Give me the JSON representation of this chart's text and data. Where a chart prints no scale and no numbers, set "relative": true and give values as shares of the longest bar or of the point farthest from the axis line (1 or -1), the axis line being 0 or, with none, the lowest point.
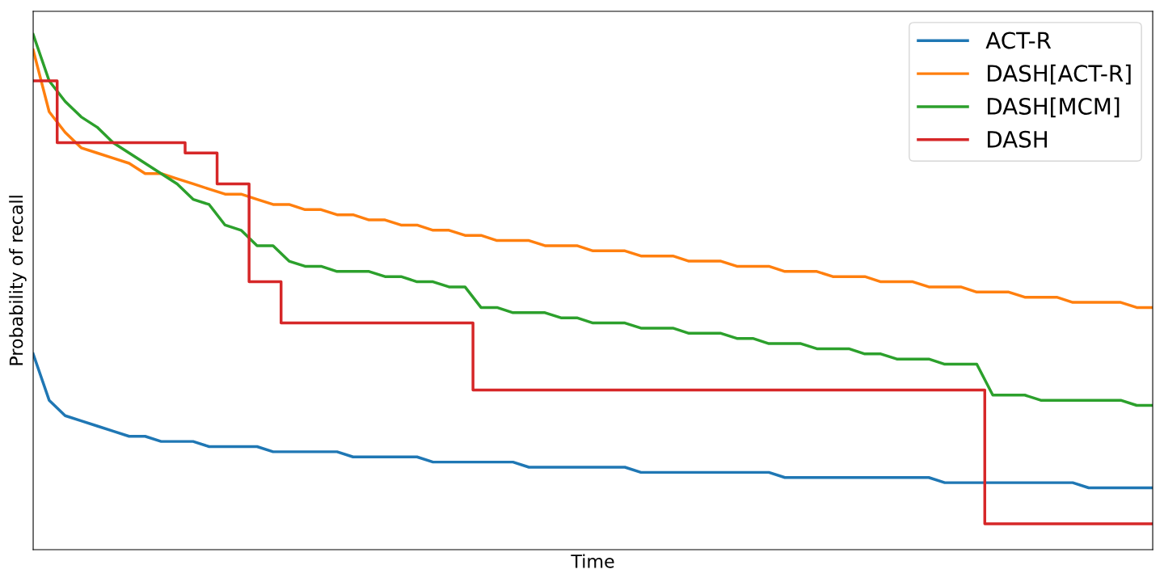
{
  "chart_data": {
    "type": "line",
    "relative": true,
    "xlabel": "Time",
    "ylabel": "Probability of recall",
    "legend": "top right",
    "categories": [
      null,
      null,
      null,
      null,
      null,
      null,
      null,
      null,
      null,
      null,
      null,
      null,
      null,
      null,
      null,
      null,
      null,
      null,
      null,
      null,
      null,
      null,
      null,
      null,
      null,
      null,
      null,
      null,
      null,
      null,
      null,
      null,
      null,
      null,
      null,
      null,
      null,
      null,
      null,
      null,
      null,
      null,
      null,
      null,
      null,
      null,
      null,
      null,
      null,
      null,
      null,
      null,
      null,
      null,
      null,
      null,
      null,
      null,
      null,
      null,
      null,
      null,
      null,
      null,
      null,
      null,
      null,
      null,
      null,
      null,
      null
    ],
    "series": [
      {
        "name": "ACT-R",
        "color": "#1f77b4",
        "values": [
          0.38,
          0.29,
          0.26,
          0.25,
          0.24,
          0.23,
          0.22,
          0.22,
          0.21,
          0.21,
          0.21,
          0.2,
          0.2,
          0.2,
          0.2,
          0.19,
          0.19,
          0.19,
          0.19,
          0.19,
          0.18,
          0.18,
          0.18,
          0.18,
          0.18,
          0.17,
          0.17,
          0.17,
          0.17,
          0.17,
          0.17,
          0.16,
          0.16,
          0.16,
          0.16,
          0.16,
          0.16,
          0.16,
          0.15,
          0.15,
          0.15,
          0.15,
          0.15,
          0.15,
          0.15,
          0.15,
          0.15,
          0.14,
          0.14,
          0.14,
          0.14,
          0.14,
          0.14,
          0.14,
          0.14,
          0.14,
          0.14,
          0.13,
          0.13,
          0.13,
          0.13,
          0.13,
          0.13,
          0.13,
          0.13,
          0.13,
          0.12,
          0.12,
          0.12,
          0.12,
          0.12
        ]
      },
      {
        "name": "DASH[ACT-R]",
        "color": "#ff7f0e",
        "values": [
          0.97,
          0.85,
          0.81,
          0.78,
          0.77,
          0.76,
          0.75,
          0.73,
          0.73,
          0.72,
          0.71,
          0.7,
          0.69,
          0.69,
          0.68,
          0.67,
          0.67,
          0.66,
          0.66,
          0.65,
          0.65,
          0.64,
          0.64,
          0.63,
          0.63,
          0.62,
          0.62,
          0.61,
          0.61,
          0.6,
          0.6,
          0.6,
          0.59,
          0.59,
          0.59,
          0.58,
          0.58,
          0.58,
          0.57,
          0.57,
          0.57,
          0.56,
          0.56,
          0.56,
          0.55,
          0.55,
          0.55,
          0.54,
          0.54,
          0.54,
          0.53,
          0.53,
          0.53,
          0.52,
          0.52,
          0.52,
          0.51,
          0.51,
          0.51,
          0.5,
          0.5,
          0.5,
          0.49,
          0.49,
          0.49,
          0.48,
          0.48,
          0.48,
          0.48,
          0.47,
          0.47
        ]
      },
      {
        "name": "DASH[MCM]",
        "color": "#2ca02c",
        "values": [
          1.0,
          0.91,
          0.87,
          0.84,
          0.82,
          0.79,
          0.77,
          0.75,
          0.73,
          0.71,
          0.68,
          0.67,
          0.63,
          0.62,
          0.59,
          0.59,
          0.56,
          0.55,
          0.55,
          0.54,
          0.54,
          0.54,
          0.53,
          0.53,
          0.52,
          0.52,
          0.51,
          0.51,
          0.47,
          0.47,
          0.46,
          0.46,
          0.46,
          0.45,
          0.45,
          0.44,
          0.44,
          0.44,
          0.43,
          0.43,
          0.43,
          0.42,
          0.42,
          0.42,
          0.41,
          0.41,
          0.4,
          0.4,
          0.4,
          0.39,
          0.39,
          0.39,
          0.38,
          0.38,
          0.37,
          0.37,
          0.37,
          0.36,
          0.36,
          0.36,
          0.3,
          0.3,
          0.3,
          0.29,
          0.29,
          0.29,
          0.29,
          0.29,
          0.29,
          0.28,
          0.28
        ]
      },
      {
        "name": "DASH",
        "type": "step",
        "color": "#d62728",
        "values": [
          0.91,
          0.91,
          0.79,
          0.79,
          0.79,
          0.79,
          0.79,
          0.79,
          0.79,
          0.79,
          0.77,
          0.77,
          0.71,
          0.71,
          0.52,
          0.52,
          0.44,
          0.44,
          0.44,
          0.44,
          0.44,
          0.44,
          0.44,
          0.44,
          0.44,
          0.44,
          0.44,
          0.44,
          0.31,
          0.31,
          0.31,
          0.31,
          0.31,
          0.31,
          0.31,
          0.31,
          0.31,
          0.31,
          0.31,
          0.31,
          0.31,
          0.31,
          0.31,
          0.31,
          0.31,
          0.31,
          0.31,
          0.31,
          0.31,
          0.31,
          0.31,
          0.31,
          0.31,
          0.31,
          0.31,
          0.31,
          0.31,
          0.31,
          0.31,
          0.31,
          0.05,
          0.05,
          0.05,
          0.05,
          0.05,
          0.05,
          0.05,
          0.05,
          0.05,
          0.05,
          0.05
        ]
      }
    ]
  }
}
